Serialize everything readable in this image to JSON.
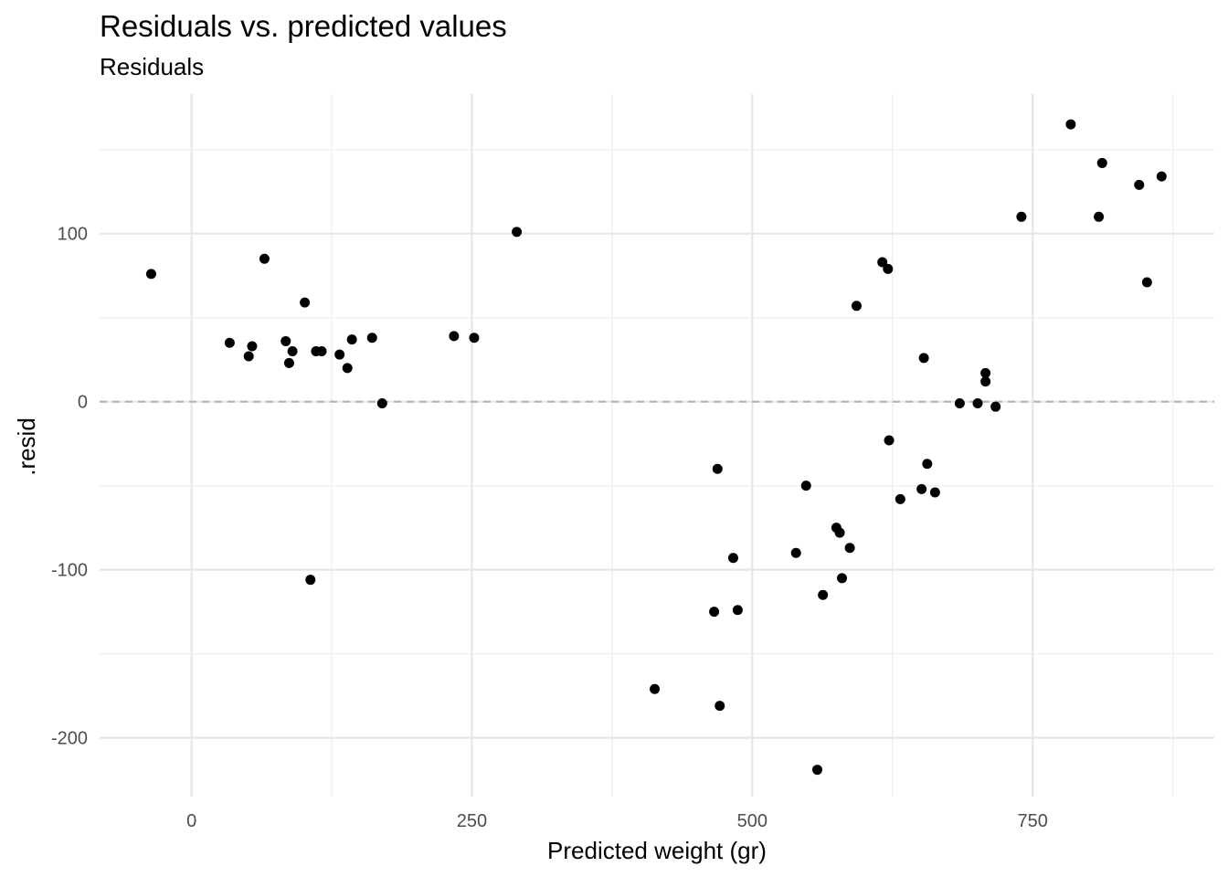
{
  "chart_data": {
    "type": "scatter",
    "title": "Residuals vs. predicted values",
    "subtitle": "Residuals",
    "xlabel": "Predicted weight (gr)",
    "ylabel": ".resid",
    "xlim": [
      -82,
      912
    ],
    "ylim": [
      -235,
      183
    ],
    "x_ticks": [
      0,
      250,
      500,
      750
    ],
    "x_tick_labels": [
      "0",
      "250",
      "500",
      "750"
    ],
    "y_ticks": [
      -200,
      -100,
      0,
      100
    ],
    "y_tick_labels": [
      "-200",
      "-100",
      "0",
      "100"
    ],
    "reference_line": 0,
    "grid": true,
    "colors": {
      "points": "#000000",
      "reference_line": "#b3b3b3",
      "grid_major": "#e6e6e6",
      "grid_minor": "#f0f0f0"
    },
    "points": [
      {
        "x": -36,
        "y": 76
      },
      {
        "x": 34,
        "y": 35
      },
      {
        "x": 51,
        "y": 27
      },
      {
        "x": 54,
        "y": 33
      },
      {
        "x": 65,
        "y": 85
      },
      {
        "x": 84,
        "y": 36
      },
      {
        "x": 87,
        "y": 23
      },
      {
        "x": 90,
        "y": 30
      },
      {
        "x": 101,
        "y": 59
      },
      {
        "x": 106,
        "y": -106
      },
      {
        "x": 111,
        "y": 30
      },
      {
        "x": 116,
        "y": 30
      },
      {
        "x": 132,
        "y": 28
      },
      {
        "x": 139,
        "y": 20
      },
      {
        "x": 143,
        "y": 37
      },
      {
        "x": 161,
        "y": 38
      },
      {
        "x": 170,
        "y": -1
      },
      {
        "x": 234,
        "y": 39
      },
      {
        "x": 252,
        "y": 38
      },
      {
        "x": 290,
        "y": 101
      },
      {
        "x": 413,
        "y": -171
      },
      {
        "x": 466,
        "y": -125
      },
      {
        "x": 469,
        "y": -40
      },
      {
        "x": 471,
        "y": -181
      },
      {
        "x": 483,
        "y": -93
      },
      {
        "x": 487,
        "y": -124
      },
      {
        "x": 539,
        "y": -90
      },
      {
        "x": 548,
        "y": -50
      },
      {
        "x": 558,
        "y": -219
      },
      {
        "x": 563,
        "y": -115
      },
      {
        "x": 575,
        "y": -75
      },
      {
        "x": 578,
        "y": -78
      },
      {
        "x": 580,
        "y": -105
      },
      {
        "x": 587,
        "y": -87
      },
      {
        "x": 593,
        "y": 57
      },
      {
        "x": 616,
        "y": 83
      },
      {
        "x": 621,
        "y": 79
      },
      {
        "x": 622,
        "y": -23
      },
      {
        "x": 632,
        "y": -58
      },
      {
        "x": 651,
        "y": -52
      },
      {
        "x": 653,
        "y": 26
      },
      {
        "x": 656,
        "y": -37
      },
      {
        "x": 663,
        "y": -54
      },
      {
        "x": 685,
        "y": -1
      },
      {
        "x": 701,
        "y": -1
      },
      {
        "x": 708,
        "y": 17
      },
      {
        "x": 708,
        "y": 12
      },
      {
        "x": 717,
        "y": -3
      },
      {
        "x": 740,
        "y": 110
      },
      {
        "x": 784,
        "y": 165
      },
      {
        "x": 809,
        "y": 110
      },
      {
        "x": 812,
        "y": 142
      },
      {
        "x": 845,
        "y": 129
      },
      {
        "x": 852,
        "y": 71
      },
      {
        "x": 865,
        "y": 134
      }
    ]
  }
}
